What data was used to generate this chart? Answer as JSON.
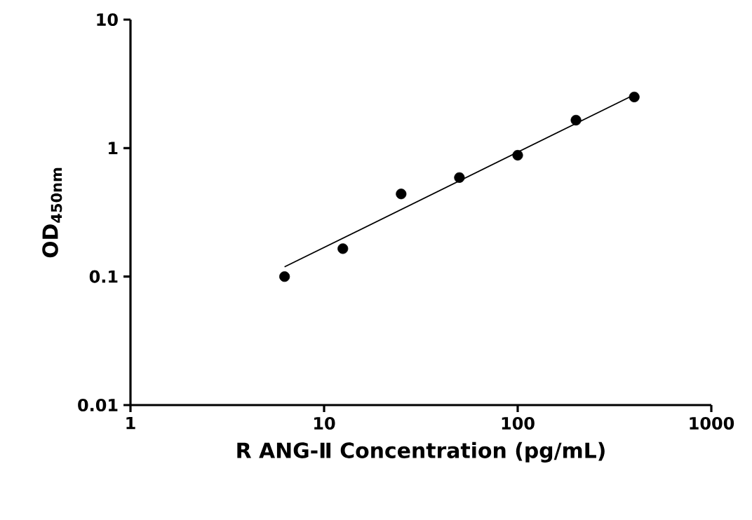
{
  "chart_data": {
    "type": "scatter",
    "xlabel": "R ANG-Ⅱ Concentration (pg/mL)",
    "ylabel": "OD$_{450nm}$",
    "log": "xy",
    "grid": false,
    "marker": "circle",
    "xlim": [
      1,
      1000
    ],
    "ylim": [
      0.01,
      10
    ],
    "xticks": [
      1,
      10,
      100,
      1000
    ],
    "yticks": [
      0.01,
      0.1,
      1,
      10
    ],
    "series": [
      {
        "color": "#000000",
        "x": [
          6.25,
          12.5,
          25,
          50,
          100,
          200,
          400
        ],
        "values": [
          0.1,
          0.165,
          0.44,
          0.59,
          0.88,
          1.65,
          2.5
        ]
      },
      {
        "type": "line",
        "color": "#000000",
        "marker": "none",
        "x": [
          6.25,
          400
        ],
        "values": [
          0.119,
          2.6
        ]
      }
    ]
  }
}
